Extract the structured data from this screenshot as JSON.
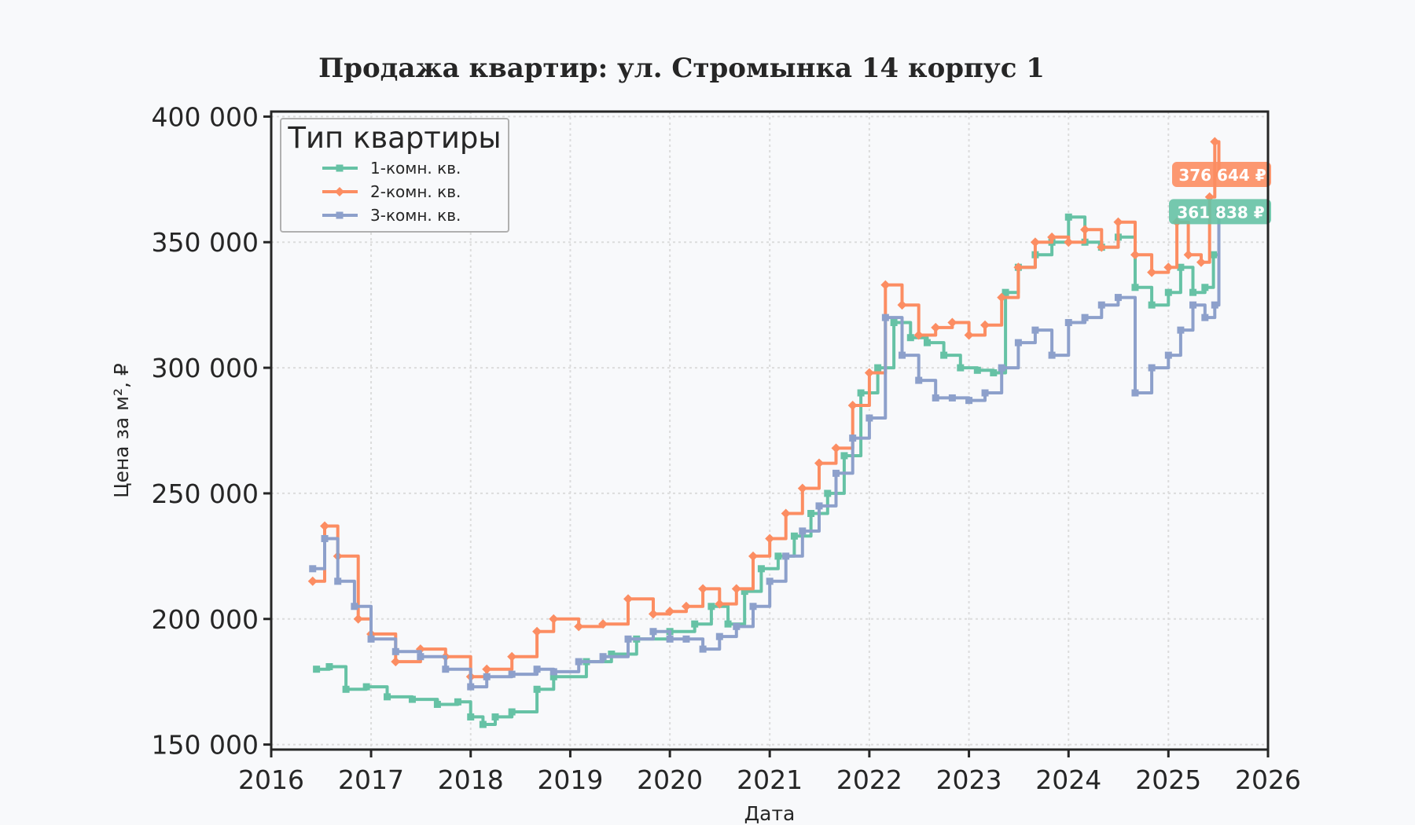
{
  "chart_data": {
    "type": "line",
    "title": "Продажа квартир: ул. Стромынка 14 корпус 1",
    "xlabel": "Дата",
    "ylabel": "Цена за м², ₽",
    "xlim": [
      "2016-01-01",
      "2026-01-01"
    ],
    "ylim": [
      148000,
      402000
    ],
    "x_ticks": [
      "2016",
      "2017",
      "2018",
      "2019",
      "2020",
      "2021",
      "2022",
      "2023",
      "2024",
      "2025",
      "2026"
    ],
    "y_ticks": [
      {
        "value": 150000,
        "label": "150 000"
      },
      {
        "value": 200000,
        "label": "200 000"
      },
      {
        "value": 250000,
        "label": "250 000"
      },
      {
        "value": 300000,
        "label": "300 000"
      },
      {
        "value": 350000,
        "label": "350 000"
      },
      {
        "value": 400000,
        "label": "400 000"
      }
    ],
    "grid": true,
    "legend": {
      "title": "Тип квартиры",
      "position": "top-left"
    },
    "series": [
      {
        "name": "1-комн. кв.",
        "color": "#66c2a5",
        "marker": "square",
        "x": [
          "2016-06-15",
          "2016-08-01",
          "2016-10-01",
          "2016-12-15",
          "2017-03-01",
          "2017-06-01",
          "2017-09-01",
          "2017-11-15",
          "2018-01-01",
          "2018-02-15",
          "2018-04-01",
          "2018-06-01",
          "2018-09-01",
          "2018-11-01",
          "2019-03-01",
          "2019-06-01",
          "2019-09-01",
          "2020-01-01",
          "2020-04-01",
          "2020-06-01",
          "2020-08-01",
          "2020-10-01",
          "2020-12-01",
          "2021-02-01",
          "2021-04-01",
          "2021-06-01",
          "2021-08-01",
          "2021-10-01",
          "2021-12-01",
          "2022-02-01",
          "2022-04-01",
          "2022-06-01",
          "2022-08-01",
          "2022-10-01",
          "2022-12-01",
          "2023-02-01",
          "2023-04-01",
          "2023-05-15",
          "2023-07-01",
          "2023-09-01",
          "2023-11-01",
          "2024-01-01",
          "2024-03-01",
          "2024-05-01",
          "2024-07-01",
          "2024-09-01",
          "2024-11-01",
          "2025-01-01",
          "2025-02-15",
          "2025-04-01",
          "2025-05-15",
          "2025-06-15",
          "2025-07-05"
        ],
        "y": [
          180000,
          181000,
          172000,
          173000,
          169000,
          168000,
          166000,
          167000,
          161000,
          158000,
          161000,
          163000,
          172000,
          177000,
          183000,
          186000,
          192000,
          195000,
          198000,
          205000,
          198000,
          211000,
          220000,
          225000,
          233000,
          242000,
          250000,
          265000,
          290000,
          300000,
          318000,
          312000,
          310000,
          305000,
          300000,
          299000,
          298000,
          330000,
          340000,
          345000,
          350000,
          360000,
          350000,
          348000,
          352000,
          332000,
          325000,
          330000,
          340000,
          330000,
          332000,
          345000,
          362000
        ]
      },
      {
        "name": "2-комн. кв.",
        "color": "#fc8d62",
        "marker": "diamond",
        "x": [
          "2016-06-01",
          "2016-07-15",
          "2016-09-01",
          "2016-11-15",
          "2017-01-01",
          "2017-04-01",
          "2017-07-01",
          "2017-10-01",
          "2018-01-01",
          "2018-03-01",
          "2018-06-01",
          "2018-09-01",
          "2018-11-01",
          "2019-02-01",
          "2019-05-01",
          "2019-08-01",
          "2019-11-01",
          "2020-01-01",
          "2020-03-01",
          "2020-05-01",
          "2020-07-01",
          "2020-09-01",
          "2020-11-01",
          "2021-01-01",
          "2021-03-01",
          "2021-05-01",
          "2021-07-01",
          "2021-09-01",
          "2021-11-01",
          "2022-01-01",
          "2022-03-01",
          "2022-05-01",
          "2022-07-01",
          "2022-09-01",
          "2022-11-01",
          "2023-01-01",
          "2023-03-01",
          "2023-05-01",
          "2023-07-01",
          "2023-09-01",
          "2023-11-01",
          "2024-01-01",
          "2024-03-01",
          "2024-05-01",
          "2024-07-01",
          "2024-09-01",
          "2024-11-01",
          "2025-01-01",
          "2025-02-01",
          "2025-03-15",
          "2025-05-01",
          "2025-06-01",
          "2025-06-20",
          "2025-07-05"
        ],
        "y": [
          215000,
          237000,
          225000,
          200000,
          194000,
          183000,
          188000,
          185000,
          177000,
          180000,
          185000,
          195000,
          200000,
          197000,
          198000,
          208000,
          202000,
          203000,
          205000,
          212000,
          206000,
          212000,
          225000,
          232000,
          242000,
          252000,
          262000,
          268000,
          285000,
          298000,
          333000,
          325000,
          313000,
          316000,
          318000,
          313000,
          317000,
          328000,
          340000,
          350000,
          352000,
          350000,
          355000,
          348000,
          358000,
          345000,
          338000,
          340000,
          358000,
          345000,
          342000,
          368000,
          390000,
          377000
        ]
      },
      {
        "name": "3-комн. кв.",
        "color": "#8da0cb",
        "marker": "square",
        "x": [
          "2016-06-01",
          "2016-07-15",
          "2016-09-01",
          "2016-11-01",
          "2017-01-01",
          "2017-04-01",
          "2017-07-01",
          "2017-10-01",
          "2018-01-01",
          "2018-03-01",
          "2018-06-01",
          "2018-09-01",
          "2018-11-01",
          "2019-02-01",
          "2019-05-01",
          "2019-08-01",
          "2019-11-01",
          "2020-01-01",
          "2020-03-01",
          "2020-05-01",
          "2020-07-01",
          "2020-09-01",
          "2020-11-01",
          "2021-01-01",
          "2021-03-01",
          "2021-05-01",
          "2021-07-01",
          "2021-09-01",
          "2021-11-01",
          "2022-01-01",
          "2022-03-01",
          "2022-05-01",
          "2022-07-01",
          "2022-09-01",
          "2022-11-01",
          "2023-01-01",
          "2023-03-01",
          "2023-05-01",
          "2023-07-01",
          "2023-09-01",
          "2023-11-01",
          "2024-01-01",
          "2024-03-01",
          "2024-05-01",
          "2024-07-01",
          "2024-09-01",
          "2024-11-01",
          "2025-01-01",
          "2025-02-15",
          "2025-04-01",
          "2025-05-15",
          "2025-06-20",
          "2025-07-05"
        ],
        "y": [
          220000,
          232000,
          215000,
          205000,
          192000,
          187000,
          185000,
          180000,
          173000,
          177000,
          178000,
          180000,
          179000,
          183000,
          185000,
          192000,
          195000,
          192000,
          192000,
          188000,
          193000,
          197000,
          205000,
          215000,
          225000,
          235000,
          245000,
          258000,
          272000,
          280000,
          320000,
          305000,
          295000,
          288000,
          288000,
          287000,
          290000,
          300000,
          310000,
          315000,
          305000,
          318000,
          320000,
          325000,
          328000,
          290000,
          300000,
          305000,
          315000,
          325000,
          320000,
          325000,
          362000
        ]
      }
    ],
    "end_labels": [
      {
        "text": "376 644 ₽",
        "color": "#fc8d62",
        "value": 376644
      },
      {
        "text": "361 838 ₽",
        "color": "#66c2a5",
        "value": 361838
      }
    ]
  }
}
